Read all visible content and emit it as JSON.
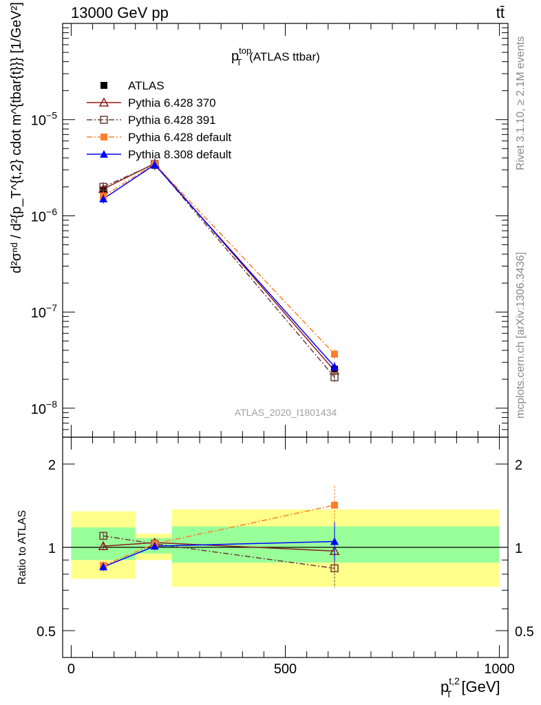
{
  "header": {
    "left": "13000 GeV pp",
    "right": "tt̄"
  },
  "side_labels": {
    "rivet": "Rivet 3.1.10, ≥ 2.1M events",
    "mcplots": "mcplots.cern.ch [arXiv:1306.3436]"
  },
  "chart_data": [
    {
      "panel": "main",
      "type": "line",
      "title_main": "p",
      "title_sup": "top",
      "title_sub": "T",
      "title_suffix": "(ATLAS ttbar)",
      "watermark": "ATLAS_2020_I1801434",
      "ylabel": "d²σⁿᵈ / d²{p_T^{t,2} cdot m^{tbar{t}}} [1/GeV²]",
      "yscale": "log",
      "ylim": [
        5e-09,
        0.0001
      ],
      "xlim": [
        -20,
        1020
      ],
      "y_ticks": [
        {
          "value": 1e-05,
          "base": "10",
          "exp": "−5"
        },
        {
          "value": 1e-06,
          "base": "10",
          "exp": "−6"
        },
        {
          "value": 1e-07,
          "base": "10",
          "exp": "−7"
        },
        {
          "value": 1e-08,
          "base": "10",
          "exp": "−8"
        }
      ],
      "x": [
        75,
        195,
        615
      ],
      "series": [
        {
          "name": "ATLAS",
          "color": "#000000",
          "marker": "square-filled",
          "line": "none",
          "values": [
            1.85e-06,
            3.35e-06,
            2.55e-08
          ]
        },
        {
          "name": "Pythia 6.428 370",
          "color": "#8b1a1a",
          "marker": "triangle-open",
          "line": "solid",
          "values": [
            1.9e-06,
            3.5e-06,
            2.45e-08
          ]
        },
        {
          "name": "Pythia 6.428 391",
          "color": "#6b3a3a",
          "marker": "square-open",
          "line": "dashdot",
          "values": [
            2e-06,
            3.45e-06,
            2.1e-08
          ]
        },
        {
          "name": "Pythia 6.428 default",
          "color": "#ff7f27",
          "marker": "square-filled",
          "line": "dashdot",
          "values": [
            1.6e-06,
            3.45e-06,
            3.65e-08
          ]
        },
        {
          "name": "Pythia 8.308 default",
          "color": "#0000ff",
          "marker": "triangle-filled",
          "line": "solid",
          "values": [
            1.5e-06,
            3.4e-06,
            2.7e-08
          ]
        }
      ]
    },
    {
      "panel": "ratio",
      "type": "line",
      "ylabel": "Ratio to ATLAS",
      "yscale": "log",
      "ylim": [
        0.4,
        2.5
      ],
      "y_ticks": [
        {
          "value": 0.5,
          "label": "0.5"
        },
        {
          "value": 1,
          "label": "1"
        },
        {
          "value": 2,
          "label": "2"
        }
      ],
      "xlabel_main": "p",
      "xlabel_sup": "t,2",
      "xlabel_sub": "T",
      "xlabel_suffix": "[GeV]",
      "xlim": [
        -20,
        1020
      ],
      "x_ticks": [
        {
          "value": 0,
          "label": "0"
        },
        {
          "value": 500,
          "label": "500"
        },
        {
          "value": 1000,
          "label": "1000"
        }
      ],
      "bins": [
        [
          0,
          150
        ],
        [
          150,
          235
        ],
        [
          235,
          1000
        ]
      ],
      "band_yellow": [
        [
          0.77,
          1.35
        ],
        [
          0.9,
          1.12
        ],
        [
          0.72,
          1.37
        ]
      ],
      "band_green": [
        [
          0.9,
          1.18
        ],
        [
          0.95,
          1.08
        ],
        [
          0.88,
          1.19
        ]
      ],
      "x": [
        75,
        195,
        615
      ],
      "series": [
        {
          "name": "Pythia 6.428 370",
          "values": [
            1.01,
            1.04,
            0.97
          ]
        },
        {
          "name": "Pythia 6.428 391",
          "values": [
            1.1,
            1.03,
            0.84
          ]
        },
        {
          "name": "Pythia 6.428 default",
          "values": [
            0.86,
            1.03,
            1.42
          ]
        },
        {
          "name": "Pythia 8.308 default",
          "values": [
            0.85,
            1.01,
            1.05
          ]
        }
      ]
    }
  ]
}
